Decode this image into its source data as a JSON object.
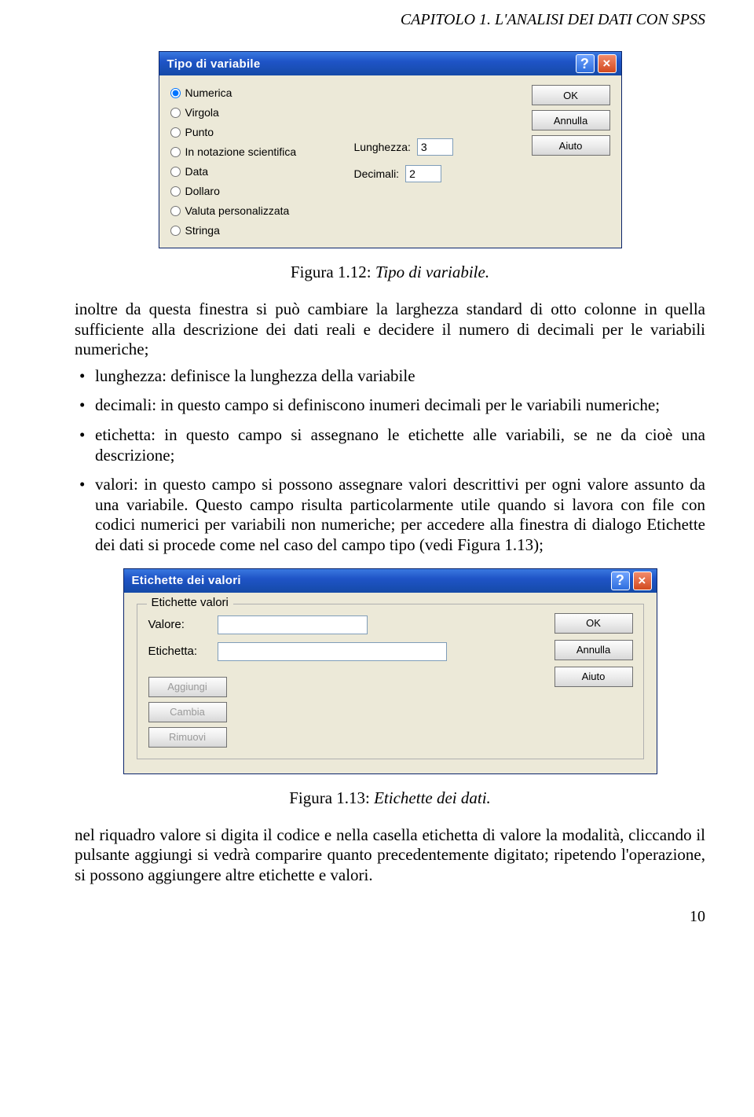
{
  "header": "CAPITOLO 1. L'ANALISI DEI DATI CON SPSS",
  "page_number": "10",
  "dialog1": {
    "title": "Tipo di variabile",
    "titlebar_bg_gradient": [
      "#3a79e0",
      "#1f54c7",
      "#154aa7"
    ],
    "dialog_bg": "#ece9d8",
    "border_color": "#0a246a",
    "radios": [
      {
        "label": "Numerica",
        "checked": true
      },
      {
        "label": "Virgola",
        "checked": false
      },
      {
        "label": "Punto",
        "checked": false
      },
      {
        "label": "In notazione scientifica",
        "checked": false
      },
      {
        "label": "Data",
        "checked": false
      },
      {
        "label": "Dollaro",
        "checked": false
      },
      {
        "label": "Valuta personalizzata",
        "checked": false
      },
      {
        "label": "Stringa",
        "checked": false
      }
    ],
    "fields": {
      "lunghezza": {
        "label": "Lunghezza:",
        "value": "3"
      },
      "decimali": {
        "label": "Decimali:",
        "value": "2"
      }
    },
    "buttons": {
      "ok": "OK",
      "annulla": "Annulla",
      "aiuto": "Aiuto"
    }
  },
  "caption1": {
    "label": "Figura 1.12:",
    "desc": "Tipo di variabile."
  },
  "para1": "inoltre da questa finestra si può cambiare la larghezza standard di otto colonne in quella sufficiente alla descrizione dei dati reali e decidere il numero di decimali per le variabili numeriche;",
  "bullets": [
    "lunghezza: definisce la lunghezza della variabile",
    "decimali: in questo campo si definiscono inumeri decimali per le variabili numeriche;",
    "etichetta: in questo campo si assegnano le etichette alle variabili, se ne da cioè una descrizione;",
    "valori: in questo campo si possono assegnare valori descrittivi per ogni valore assunto da una variabile. Questo campo risulta particolarmente utile quando si lavora con file con codici numerici per variabili non numeriche; per accedere alla finestra di dialogo Etichette dei dati si procede come nel caso del campo tipo (vedi Figura 1.13);"
  ],
  "dialog2": {
    "title": "Etichette dei valori",
    "legend": "Etichette valori",
    "fields": {
      "valore": {
        "label": "Valore:",
        "value": ""
      },
      "etichetta": {
        "label": "Etichetta:",
        "value": ""
      }
    },
    "left_buttons": {
      "aggiungi": "Aggiungi",
      "cambia": "Cambia",
      "rimuovi": "Rimuovi"
    },
    "right_buttons": {
      "ok": "OK",
      "annulla": "Annulla",
      "aiuto": "Aiuto"
    }
  },
  "caption2": {
    "label": "Figura 1.13:",
    "desc": "Etichette dei dati."
  },
  "para2": "nel riquadro valore si digita il codice e nella casella etichetta di valore la modalità, cliccando il pulsante aggiungi si vedrà comparire quanto precedentemente digitato; ripetendo l'operazione, si possono aggiungere altre etichette e valori."
}
